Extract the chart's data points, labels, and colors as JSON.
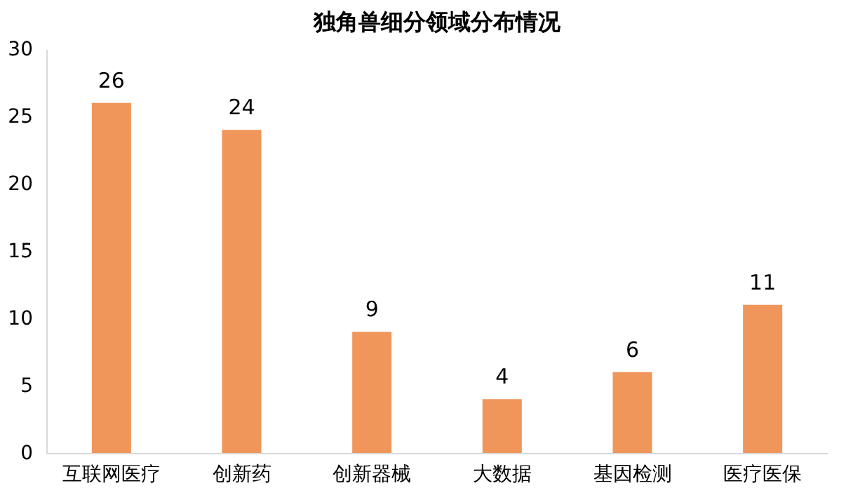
{
  "chart_data": {
    "type": "bar",
    "title": "独角兽细分领域分布情况",
    "categories": [
      "互联网医疗",
      "创新药",
      "创新器械",
      "大数据",
      "基因检测",
      "医疗医保"
    ],
    "values": [
      26,
      24,
      9,
      4,
      6,
      11
    ],
    "color": "#f0965a",
    "ylim": [
      0,
      30
    ],
    "yticks": [
      0,
      5,
      10,
      15,
      20,
      25,
      30
    ],
    "grid": false,
    "data_labels": true
  }
}
